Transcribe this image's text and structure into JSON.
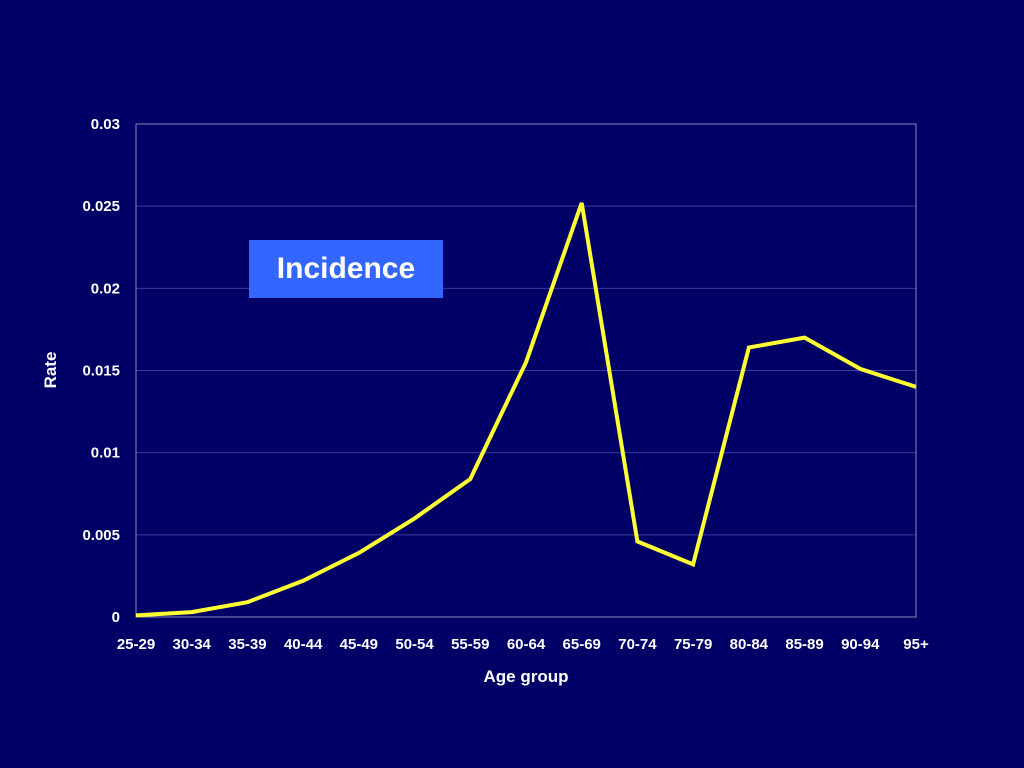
{
  "chart_data": {
    "type": "line",
    "title": "",
    "xlabel": "Age group",
    "ylabel": "Rate",
    "categories": [
      "25-29",
      "30-34",
      "35-39",
      "40-44",
      "45-49",
      "50-54",
      "55-59",
      "60-64",
      "65-69",
      "70-74",
      "75-79",
      "80-84",
      "85-89",
      "90-94",
      "95+"
    ],
    "series": [
      {
        "values": [
          0.0001,
          0.0003,
          0.0009,
          0.0022,
          0.0039,
          0.006,
          0.0084,
          0.0155,
          0.0252,
          0.0046,
          0.0032,
          0.0164,
          0.017,
          0.0151,
          0.014
        ],
        "color": "#ffff33"
      }
    ],
    "ylim": [
      0,
      0.03
    ],
    "yticks": [
      "0",
      "0.005",
      "0.01",
      "0.015",
      "0.02",
      "0.025",
      "0.03"
    ],
    "grid": true,
    "annotation": "Incidence",
    "colors": {
      "background": "#000066",
      "line": "#ffff33",
      "annotation_box": "#3366ff",
      "text": "#ffffff",
      "grid": "#3a3aa0"
    }
  }
}
